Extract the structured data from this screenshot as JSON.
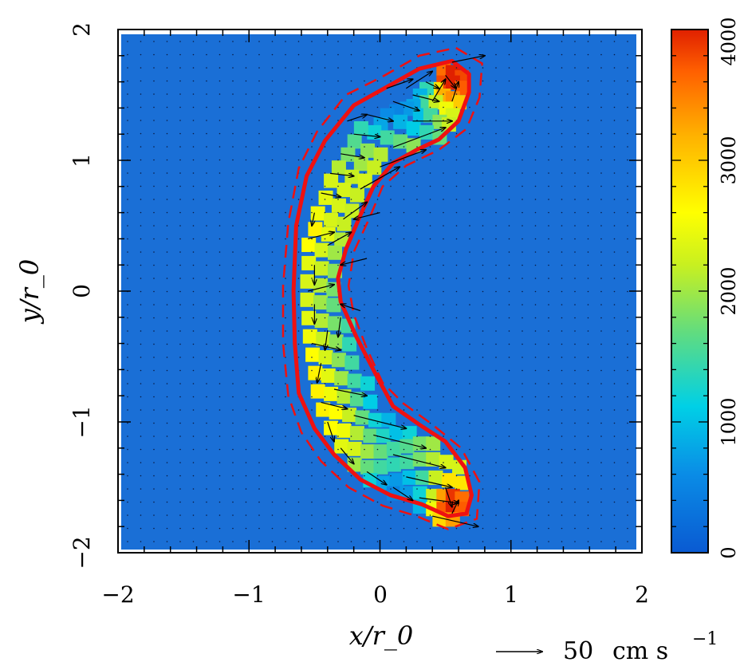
{
  "chart_data": {
    "type": "heatmap",
    "title": "",
    "xlabel": "x/r_0",
    "ylabel": "y/r_0",
    "xlim": [
      -2,
      2
    ],
    "ylim": [
      -2,
      2
    ],
    "x_ticks": [
      -2,
      -1,
      0,
      1,
      2
    ],
    "y_ticks": [
      -2,
      -1,
      0,
      1,
      2
    ],
    "x_tick_labels": [
      "−2",
      "−1",
      "0",
      "1",
      "2"
    ],
    "y_tick_labels": [
      "−2",
      "−1",
      "0",
      "1",
      "2"
    ],
    "colorbar": {
      "range": [
        0,
        4000
      ],
      "ticks": [
        0,
        1000,
        2000,
        3000,
        4000
      ],
      "tick_labels": [
        "0",
        "1000",
        "2000",
        "3000",
        "4000"
      ],
      "colors": [
        "#0a5ad2",
        "#00c8e6",
        "#80e050",
        "#ffff00",
        "#ff8800",
        "#e02800"
      ]
    },
    "background_value": 0,
    "background_color": "#1a6fd6",
    "vector_reference": {
      "label_number": "50",
      "label_unit": "cm s",
      "label_exp": "−1"
    },
    "contours": {
      "solid_color": "#ee1111",
      "dashed_color": "#ee1111",
      "solid_outer": [
        [
          0.55,
          1.76
        ],
        [
          0.68,
          1.66
        ],
        [
          0.68,
          1.52
        ],
        [
          0.6,
          1.3
        ],
        [
          0.45,
          1.16
        ],
        [
          0.28,
          1.08
        ],
        [
          0.1,
          0.98
        ],
        [
          -0.05,
          0.8
        ],
        [
          -0.15,
          0.58
        ],
        [
          -0.26,
          0.32
        ],
        [
          -0.32,
          0.1
        ],
        [
          -0.3,
          -0.08
        ],
        [
          -0.18,
          -0.35
        ],
        [
          -0.04,
          -0.62
        ],
        [
          0.1,
          -0.88
        ],
        [
          0.3,
          -1.02
        ],
        [
          0.5,
          -1.15
        ],
        [
          0.65,
          -1.35
        ],
        [
          0.7,
          -1.56
        ],
        [
          0.66,
          -1.7
        ],
        [
          0.52,
          -1.72
        ],
        [
          0.32,
          -1.63
        ],
        [
          0.08,
          -1.56
        ],
        [
          -0.15,
          -1.44
        ],
        [
          -0.35,
          -1.25
        ],
        [
          -0.5,
          -1.05
        ],
        [
          -0.62,
          -0.78
        ],
        [
          -0.65,
          -0.4
        ],
        [
          -0.66,
          0
        ],
        [
          -0.64,
          0.5
        ],
        [
          -0.56,
          0.88
        ],
        [
          -0.42,
          1.15
        ],
        [
          -0.2,
          1.42
        ],
        [
          0.05,
          1.56
        ],
        [
          0.3,
          1.7
        ]
      ],
      "dashed_outer": [
        [
          0.58,
          1.86
        ],
        [
          0.78,
          1.74
        ],
        [
          0.76,
          1.48
        ],
        [
          0.66,
          1.24
        ],
        [
          0.45,
          1.08
        ],
        [
          0.2,
          0.96
        ],
        [
          0.02,
          0.8
        ],
        [
          -0.08,
          0.56
        ],
        [
          -0.2,
          0.3
        ],
        [
          -0.24,
          0.04
        ],
        [
          -0.2,
          -0.18
        ],
        [
          -0.1,
          -0.44
        ],
        [
          0.02,
          -0.7
        ],
        [
          0.18,
          -0.86
        ],
        [
          0.4,
          -1.02
        ],
        [
          0.62,
          -1.2
        ],
        [
          0.76,
          -1.46
        ],
        [
          0.74,
          -1.74
        ],
        [
          0.52,
          -1.82
        ],
        [
          0.28,
          -1.72
        ],
        [
          0.02,
          -1.64
        ],
        [
          -0.24,
          -1.5
        ],
        [
          -0.45,
          -1.3
        ],
        [
          -0.6,
          -1.08
        ],
        [
          -0.7,
          -0.8
        ],
        [
          -0.74,
          -0.4
        ],
        [
          -0.74,
          0.04
        ],
        [
          -0.7,
          0.52
        ],
        [
          -0.62,
          0.94
        ],
        [
          -0.48,
          1.22
        ],
        [
          -0.26,
          1.5
        ],
        [
          0.02,
          1.64
        ],
        [
          0.3,
          1.8
        ]
      ]
    },
    "field_cells": [
      [
        0.48,
        1.7,
        3600
      ],
      [
        0.55,
        1.68,
        4000
      ],
      [
        0.62,
        1.64,
        3800
      ],
      [
        0.48,
        1.6,
        3800
      ],
      [
        0.55,
        1.6,
        4000
      ],
      [
        0.62,
        1.56,
        3700
      ],
      [
        0.42,
        1.55,
        2800
      ],
      [
        0.48,
        1.5,
        3200
      ],
      [
        0.55,
        1.48,
        3400
      ],
      [
        0.6,
        1.45,
        3000
      ],
      [
        0.35,
        1.55,
        1400
      ],
      [
        0.3,
        1.5,
        900
      ],
      [
        0.35,
        1.45,
        1500
      ],
      [
        0.42,
        1.45,
        2200
      ],
      [
        0.5,
        1.4,
        2500
      ],
      [
        0.55,
        1.35,
        2300
      ],
      [
        0.25,
        1.42,
        800
      ],
      [
        0.2,
        1.4,
        700
      ],
      [
        0.3,
        1.35,
        1000
      ],
      [
        0.38,
        1.35,
        1500
      ],
      [
        0.45,
        1.3,
        1900
      ],
      [
        0.52,
        1.28,
        2200
      ],
      [
        0.12,
        1.38,
        500
      ],
      [
        0.05,
        1.35,
        600
      ],
      [
        0.15,
        1.3,
        900
      ],
      [
        0.25,
        1.25,
        1100
      ],
      [
        0.35,
        1.22,
        1400
      ],
      [
        0.45,
        1.18,
        1700
      ],
      [
        0,
        1.28,
        800
      ],
      [
        -0.05,
        1.22,
        1200
      ],
      [
        0.05,
        1.18,
        1500
      ],
      [
        0.15,
        1.15,
        1700
      ],
      [
        0.25,
        1.12,
        1900
      ],
      [
        -0.15,
        1.25,
        1400
      ],
      [
        -0.2,
        1.15,
        1600
      ],
      [
        -0.1,
        1.08,
        1900
      ],
      [
        0,
        1.05,
        2100
      ],
      [
        -0.25,
        1.05,
        1800
      ],
      [
        -0.15,
        0.98,
        2000
      ],
      [
        -0.05,
        0.95,
        2200
      ],
      [
        -0.32,
        0.95,
        2100
      ],
      [
        -0.22,
        0.88,
        2200
      ],
      [
        -0.12,
        0.85,
        2300
      ],
      [
        -0.38,
        0.85,
        2300
      ],
      [
        -0.28,
        0.78,
        2300
      ],
      [
        -0.18,
        0.74,
        2200
      ],
      [
        -0.42,
        0.72,
        2400
      ],
      [
        -0.32,
        0.66,
        2300
      ],
      [
        -0.22,
        0.62,
        2200
      ],
      [
        -0.48,
        0.6,
        2500
      ],
      [
        -0.38,
        0.55,
        2300
      ],
      [
        -0.28,
        0.52,
        2200
      ],
      [
        -0.5,
        0.48,
        2700
      ],
      [
        -0.4,
        0.44,
        2400
      ],
      [
        -0.3,
        0.4,
        2100
      ],
      [
        -0.55,
        0.36,
        2600
      ],
      [
        -0.45,
        0.32,
        2300
      ],
      [
        -0.35,
        0.3,
        2000
      ],
      [
        -0.55,
        0.22,
        2400
      ],
      [
        -0.45,
        0.18,
        2200
      ],
      [
        -0.35,
        0.16,
        1900
      ],
      [
        -0.56,
        0.08,
        2300
      ],
      [
        -0.46,
        0.05,
        2100
      ],
      [
        -0.36,
        0.02,
        1800
      ],
      [
        -0.56,
        -0.06,
        2300
      ],
      [
        -0.46,
        -0.08,
        2000
      ],
      [
        -0.36,
        -0.1,
        1700
      ],
      [
        -0.55,
        -0.2,
        2400
      ],
      [
        -0.45,
        -0.22,
        2100
      ],
      [
        -0.35,
        -0.24,
        1800
      ],
      [
        -0.25,
        -0.26,
        1500
      ],
      [
        -0.54,
        -0.34,
        2500
      ],
      [
        -0.44,
        -0.36,
        2200
      ],
      [
        -0.34,
        -0.38,
        1900
      ],
      [
        -0.24,
        -0.4,
        1400
      ],
      [
        -0.52,
        -0.48,
        2600
      ],
      [
        -0.42,
        -0.5,
        2300
      ],
      [
        -0.32,
        -0.52,
        1900
      ],
      [
        -0.22,
        -0.54,
        1500
      ],
      [
        -0.5,
        -0.62,
        2700
      ],
      [
        -0.4,
        -0.64,
        2400
      ],
      [
        -0.3,
        -0.66,
        2000
      ],
      [
        -0.2,
        -0.68,
        1500
      ],
      [
        -0.1,
        -0.7,
        1200
      ],
      [
        -0.48,
        -0.76,
        2700
      ],
      [
        -0.38,
        -0.78,
        2500
      ],
      [
        -0.28,
        -0.8,
        2100
      ],
      [
        -0.18,
        -0.82,
        1600
      ],
      [
        -0.08,
        -0.84,
        1100
      ],
      [
        -0.44,
        -0.9,
        2700
      ],
      [
        -0.34,
        -0.92,
        2600
      ],
      [
        -0.24,
        -0.94,
        2200
      ],
      [
        -0.14,
        -0.96,
        1700
      ],
      [
        -0.04,
        -0.98,
        1200
      ],
      [
        0.06,
        -0.98,
        900
      ],
      [
        -0.38,
        -1.04,
        2600
      ],
      [
        -0.28,
        -1.06,
        2500
      ],
      [
        -0.18,
        -1.08,
        2100
      ],
      [
        -0.08,
        -1.1,
        1700
      ],
      [
        0.02,
        -1.1,
        1300
      ],
      [
        0.12,
        -1.08,
        1000
      ],
      [
        0.22,
        -1.08,
        1200
      ],
      [
        -0.3,
        -1.18,
        2400
      ],
      [
        -0.2,
        -1.2,
        2300
      ],
      [
        -0.1,
        -1.22,
        2000
      ],
      [
        0,
        -1.22,
        1700
      ],
      [
        0.1,
        -1.2,
        1500
      ],
      [
        0.2,
        -1.18,
        1600
      ],
      [
        0.3,
        -1.16,
        1800
      ],
      [
        0.4,
        -1.16,
        2000
      ],
      [
        -0.2,
        -1.32,
        2000
      ],
      [
        -0.1,
        -1.34,
        1700
      ],
      [
        0,
        -1.34,
        1500
      ],
      [
        0.1,
        -1.32,
        1400
      ],
      [
        0.2,
        -1.3,
        1500
      ],
      [
        0.3,
        -1.28,
        1800
      ],
      [
        0.4,
        -1.28,
        2100
      ],
      [
        0.5,
        -1.3,
        2300
      ],
      [
        0.6,
        -1.34,
        2300
      ],
      [
        -0.08,
        -1.44,
        1200
      ],
      [
        0.02,
        -1.46,
        800
      ],
      [
        0.12,
        -1.44,
        700
      ],
      [
        0.22,
        -1.42,
        1000
      ],
      [
        0.32,
        -1.42,
        1500
      ],
      [
        0.42,
        -1.42,
        2200
      ],
      [
        0.52,
        -1.44,
        2800
      ],
      [
        0.62,
        -1.46,
        2800
      ],
      [
        0.1,
        -1.54,
        500
      ],
      [
        0.2,
        -1.54,
        700
      ],
      [
        0.3,
        -1.54,
        1200
      ],
      [
        0.4,
        -1.56,
        2200
      ],
      [
        0.48,
        -1.56,
        3300
      ],
      [
        0.55,
        -1.56,
        3900
      ],
      [
        0.62,
        -1.58,
        3600
      ],
      [
        0.3,
        -1.64,
        900
      ],
      [
        0.4,
        -1.66,
        2500
      ],
      [
        0.48,
        -1.66,
        3700
      ],
      [
        0.55,
        -1.66,
        4000
      ],
      [
        0.62,
        -1.66,
        3700
      ],
      [
        0.45,
        -1.74,
        2900
      ],
      [
        0.55,
        -1.74,
        3300
      ]
    ],
    "vector_segments": [
      [
        0.55,
        1.75,
        0.8,
        1.8
      ],
      [
        0.5,
        1.65,
        0.58,
        1.55
      ],
      [
        0.35,
        1.6,
        0.45,
        1.55
      ],
      [
        0.25,
        1.5,
        0.45,
        1.45
      ],
      [
        0.1,
        1.45,
        0.3,
        1.38
      ],
      [
        -0.1,
        1.35,
        0.1,
        1.3
      ],
      [
        -0.2,
        1.2,
        0,
        1.18
      ],
      [
        -0.3,
        1.05,
        -0.12,
        1.02
      ],
      [
        -0.38,
        0.9,
        -0.2,
        0.88
      ],
      [
        -0.45,
        0.75,
        -0.3,
        0.72
      ],
      [
        0.25,
        1.3,
        0.55,
        1.3
      ],
      [
        0.1,
        1.1,
        0.5,
        1.25
      ],
      [
        0,
        0.95,
        0.35,
        1.08
      ],
      [
        -0.15,
        0.78,
        0.15,
        0.95
      ],
      [
        -0.28,
        0.55,
        -0.1,
        0.68
      ],
      [
        -0.4,
        0.35,
        -0.22,
        0.45
      ],
      [
        -0.5,
        0.6,
        -0.52,
        0.5
      ],
      [
        -0.5,
        0.2,
        -0.5,
        0.05
      ],
      [
        -0.5,
        -0.1,
        -0.5,
        -0.25
      ],
      [
        -0.4,
        -0.3,
        -0.42,
        -0.45
      ],
      [
        -0.3,
        -0.2,
        -0.32,
        -0.35
      ],
      [
        -0.45,
        -0.55,
        -0.48,
        -0.7
      ],
      [
        -0.35,
        -0.75,
        -0.1,
        -0.8
      ],
      [
        -0.2,
        -0.95,
        0.2,
        -1.05
      ],
      [
        -0.05,
        -1.1,
        0.35,
        -1.2
      ],
      [
        0.1,
        -1.25,
        0.5,
        -1.35
      ],
      [
        0.2,
        -1.42,
        0.55,
        -1.5
      ],
      [
        0.3,
        -1.58,
        0.6,
        -1.62
      ],
      [
        0.4,
        -1.72,
        0.75,
        -1.8
      ],
      [
        -0.4,
        -1.0,
        -0.35,
        -1.15
      ],
      [
        -0.3,
        -1.2,
        -0.2,
        -1.32
      ],
      [
        -0.1,
        -1.38,
        0.05,
        -1.48
      ],
      [
        0.1,
        -1.5,
        0.25,
        -1.6
      ],
      [
        0.5,
        -1.5,
        0.55,
        -1.65
      ],
      [
        0.55,
        -1.7,
        0.6,
        -1.6
      ],
      [
        -0.55,
        0.4,
        -0.35,
        0.45
      ],
      [
        -0.55,
        0.0,
        -0.35,
        0.05
      ],
      [
        -0.52,
        -0.4,
        -0.3,
        -0.45
      ],
      [
        -0.45,
        -0.85,
        -0.25,
        -0.9
      ],
      [
        0,
        0.6,
        -0.2,
        0.55
      ],
      [
        -0.1,
        0.25,
        -0.3,
        0.2
      ],
      [
        -0.15,
        -0.15,
        -0.3,
        -0.1
      ],
      [
        0.4,
        1.45,
        0.5,
        1.62
      ],
      [
        0.55,
        1.45,
        0.6,
        1.6
      ],
      [
        0.2,
        1.55,
        0.4,
        1.68
      ],
      [
        -0.25,
        1.3,
        -0.1,
        1.35
      ],
      [
        0.05,
        1.55,
        0.25,
        1.62
      ]
    ]
  }
}
